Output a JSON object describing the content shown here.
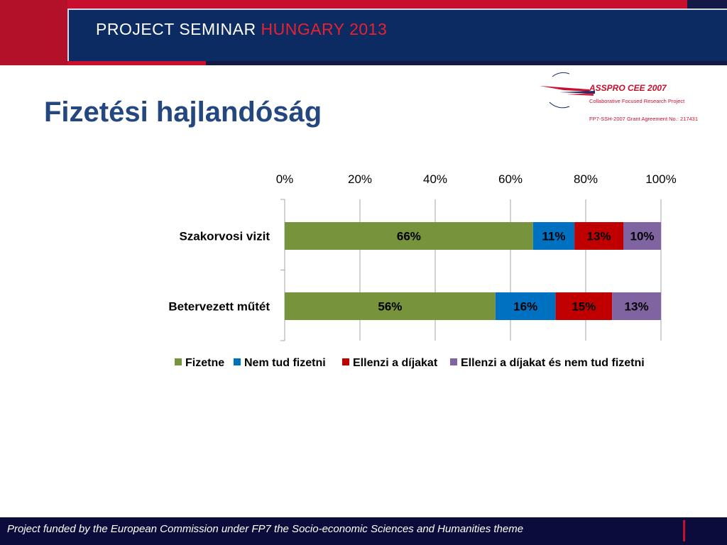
{
  "header": {
    "title_main": "PROJECT SEMINAR ",
    "title_accent": "HUNGARY 2013"
  },
  "slide": {
    "title": "Fizetési hajlandóság"
  },
  "logo": {
    "name": "ASSPRO CEE 2007",
    "subtitle": "Collaborative Focused Research Project",
    "grant": "FP7-SSH-2007 Grant Agreement No.: 217431"
  },
  "chart_data": {
    "type": "bar",
    "orientation": "horizontal",
    "stacked": "percent",
    "categories": [
      "Szakorvosi vizit",
      "Betervezett műtét"
    ],
    "series": [
      {
        "name": "Fizetne",
        "color": "#77933c",
        "values": [
          66,
          56
        ],
        "labels": [
          "66%",
          "56%"
        ],
        "label_color": "#000000"
      },
      {
        "name": "Nem tud fizetni",
        "color": "#0070c0",
        "values": [
          11,
          16
        ],
        "labels": [
          "11%",
          "16%"
        ],
        "label_color": "#000000"
      },
      {
        "name": "Ellenzi a díjakat",
        "color": "#c00000",
        "values": [
          13,
          15
        ],
        "labels": [
          "13%",
          "15%"
        ],
        "label_color": "#000000"
      },
      {
        "name": "Ellenzi a díjakat és nem tud fizetni",
        "color": "#8064a2",
        "values": [
          10,
          13
        ],
        "labels": [
          "10%",
          "13%"
        ],
        "label_color": "#000000"
      }
    ],
    "x_ticks": [
      "0%",
      "20%",
      "40%",
      "60%",
      "80%",
      "100%"
    ],
    "xlim": [
      0,
      100
    ],
    "x_axis_position": "top",
    "grid": true,
    "legend_position": "bottom"
  },
  "footer": {
    "text": "Project funded by the European Commission under FP7 the Socio-economic Sciences and Humanities theme"
  }
}
